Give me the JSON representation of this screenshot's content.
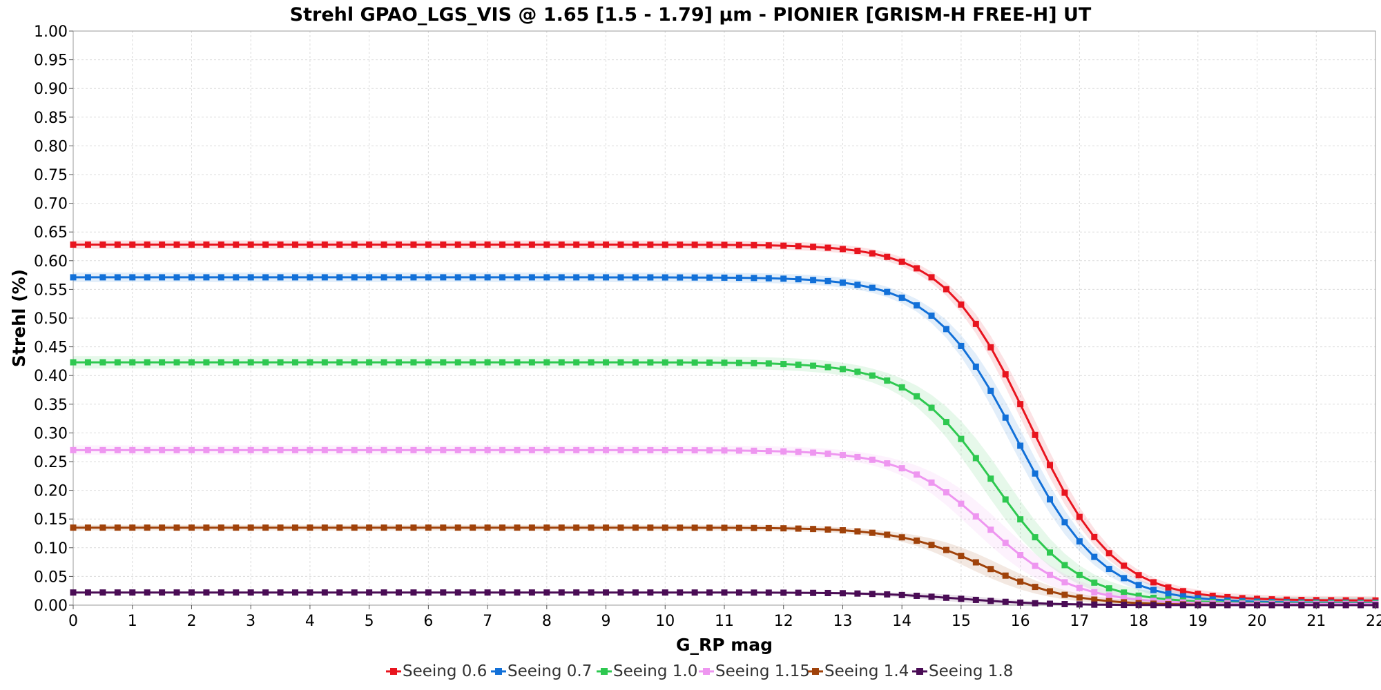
{
  "chart_data": {
    "type": "line",
    "title": "Strehl GPAO_LGS_VIS @ 1.65 [1.5 - 1.79] µm - PIONIER [GRISM-H FREE-H] UT",
    "xlabel": "G_RP mag",
    "ylabel": "Strehl (%)",
    "xlim": [
      0,
      22
    ],
    "ylim": [
      0,
      1
    ],
    "grid": true,
    "legend_position": "bottom",
    "x_ticks": [
      "0",
      "1",
      "2",
      "3",
      "4",
      "5",
      "6",
      "7",
      "8",
      "9",
      "10",
      "11",
      "12",
      "13",
      "14",
      "15",
      "16",
      "17",
      "18",
      "19",
      "20",
      "21",
      "22"
    ],
    "y_ticks": [
      "0.00",
      "0.05",
      "0.10",
      "0.15",
      "0.20",
      "0.25",
      "0.30",
      "0.35",
      "0.40",
      "0.45",
      "0.50",
      "0.55",
      "0.60",
      "0.65",
      "0.70",
      "0.75",
      "0.80",
      "0.85",
      "0.90",
      "0.95",
      "1.00"
    ],
    "x_step": 0.25,
    "series": [
      {
        "name": "Seeing 0.6",
        "color": "#e8141e",
        "plateau": 0.628,
        "floor": 0.008,
        "m50": 16.15,
        "band": 0.012
      },
      {
        "name": "Seeing 0.7",
        "color": "#1270d8",
        "plateau": 0.571,
        "floor": 0.004,
        "m50": 15.95,
        "band": 0.014
      },
      {
        "name": "Seeing 1.0",
        "color": "#2ec850",
        "plateau": 0.423,
        "floor": 0.003,
        "m50": 15.55,
        "band": 0.018
      },
      {
        "name": "Seeing 1.15",
        "color": "#ee96f0",
        "plateau": 0.27,
        "floor": 0.002,
        "m50": 15.45,
        "band": 0.014
      },
      {
        "name": "Seeing 1.4",
        "color": "#a0420a",
        "plateau": 0.135,
        "floor": 0.0,
        "m50": 15.4,
        "band": 0.008
      },
      {
        "name": "Seeing 1.8",
        "color": "#4a0c55",
        "plateau": 0.022,
        "floor": 0.0,
        "m50": 15.0,
        "band": 0.003
      }
    ]
  }
}
